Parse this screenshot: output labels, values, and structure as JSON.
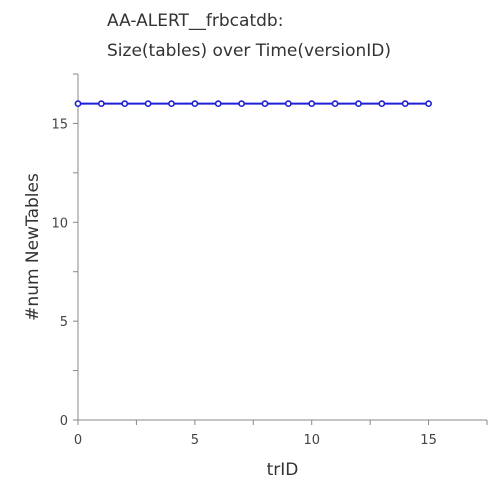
{
  "chart_data": {
    "type": "line",
    "title": [
      "AA-ALERT__frbcatdb:",
      "Size(tables) over Time(versionID)"
    ],
    "xlabel": "trID",
    "ylabel": "#num NewTables",
    "xlim": [
      0,
      17.5
    ],
    "ylim": [
      0,
      17.5
    ],
    "x_ticks": [
      0,
      5,
      10,
      15
    ],
    "y_ticks": [
      0,
      5,
      10,
      15
    ],
    "x_tick_labels": [
      "0",
      "5",
      "10",
      "15"
    ],
    "y_tick_labels": [
      "0",
      "5",
      "10",
      "15"
    ],
    "grid": false,
    "series": [
      {
        "color": "#1f1fd6",
        "x": [
          0,
          1,
          2,
          3,
          4,
          5,
          6,
          7,
          8,
          9,
          10,
          11,
          12,
          13,
          14,
          15
        ],
        "y": [
          16,
          16,
          16,
          16,
          16,
          16,
          16,
          16,
          16,
          16,
          16,
          16,
          16,
          16,
          16,
          16
        ]
      }
    ]
  }
}
